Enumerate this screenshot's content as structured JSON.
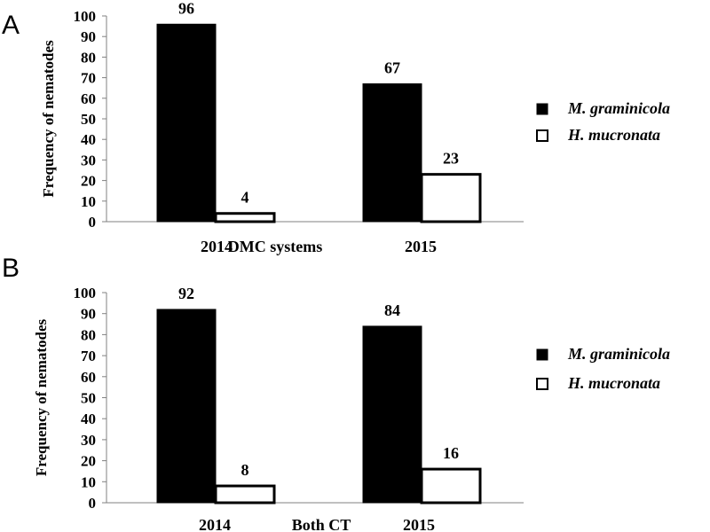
{
  "chart_data": [
    {
      "type": "bar",
      "panel": "A",
      "ylabel": "Frequency of nematodes",
      "ylim": [
        0,
        100
      ],
      "yticks": [
        "0",
        "10",
        "20",
        "30",
        "40",
        "50",
        "60",
        "70",
        "80",
        "90",
        "100"
      ],
      "x_labels": [
        "2014",
        "DMC systems",
        "2015"
      ],
      "series": [
        {
          "name": "M. graminicola",
          "values": [
            96,
            67
          ],
          "fill": "#000000"
        },
        {
          "name": "H. mucronata",
          "values": [
            4,
            23
          ],
          "fill": "#ffffff"
        }
      ],
      "legend": "right"
    },
    {
      "type": "bar",
      "panel": "B",
      "ylabel": "Frequency of nematodes",
      "ylim": [
        0,
        100
      ],
      "yticks": [
        "0",
        "10",
        "20",
        "30",
        "40",
        "50",
        "60",
        "70",
        "80",
        "90",
        "100"
      ],
      "x_labels": [
        "2014",
        "Both CT",
        "2015"
      ],
      "series": [
        {
          "name": "M. graminicola",
          "values": [
            92,
            84
          ],
          "fill": "#000000"
        },
        {
          "name": "H. mucronata",
          "values": [
            8,
            16
          ],
          "fill": "#ffffff"
        }
      ],
      "legend": "right"
    }
  ]
}
